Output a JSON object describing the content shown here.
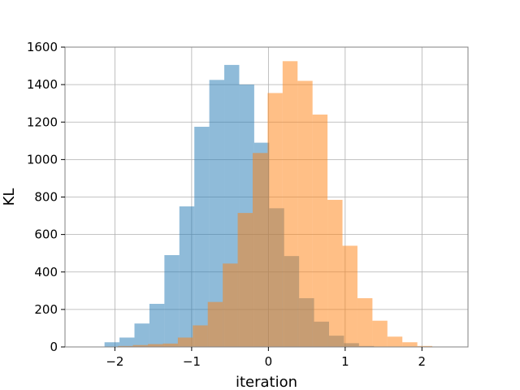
{
  "chart_data": {
    "type": "bar",
    "title": "",
    "xlabel": "iteration",
    "ylabel": "KL",
    "xlim": [
      -2.65,
      2.6
    ],
    "ylim": [
      0,
      1600
    ],
    "xticks": [
      -2,
      -1,
      0,
      1,
      2
    ],
    "xtick_labels": [
      "−2",
      "−1",
      "0",
      "1",
      "2"
    ],
    "yticks": [
      0,
      200,
      400,
      600,
      800,
      1000,
      1200,
      1400,
      1600
    ],
    "ytick_labels": [
      "0",
      "200",
      "400",
      "600",
      "800",
      "1000",
      "1200",
      "1400",
      "1600"
    ],
    "grid": true,
    "legend": "none",
    "bin_width": 0.195,
    "series": [
      {
        "color": "#1f77b4",
        "opacity": 0.5,
        "bins": [
          {
            "x0": -2.33,
            "value": 2
          },
          {
            "x0": -2.135,
            "value": 25
          },
          {
            "x0": -1.94,
            "value": 50
          },
          {
            "x0": -1.745,
            "value": 125
          },
          {
            "x0": -1.55,
            "value": 230
          },
          {
            "x0": -1.355,
            "value": 490
          },
          {
            "x0": -1.16,
            "value": 750
          },
          {
            "x0": -0.965,
            "value": 1175
          },
          {
            "x0": -0.77,
            "value": 1425
          },
          {
            "x0": -0.575,
            "value": 1505
          },
          {
            "x0": -0.38,
            "value": 1400
          },
          {
            "x0": -0.185,
            "value": 1090
          },
          {
            "x0": 0.01,
            "value": 740
          },
          {
            "x0": 0.205,
            "value": 485
          },
          {
            "x0": 0.4,
            "value": 260
          },
          {
            "x0": 0.595,
            "value": 135
          },
          {
            "x0": 0.79,
            "value": 60
          },
          {
            "x0": 0.985,
            "value": 20
          },
          {
            "x0": 1.18,
            "value": 5
          }
        ]
      },
      {
        "color": "#ff7f0e",
        "opacity": 0.5,
        "bins": [
          {
            "x0": -1.96,
            "value": 5
          },
          {
            "x0": -1.765,
            "value": 10
          },
          {
            "x0": -1.57,
            "value": 15
          },
          {
            "x0": -1.375,
            "value": 18
          },
          {
            "x0": -1.18,
            "value": 50
          },
          {
            "x0": -0.985,
            "value": 115
          },
          {
            "x0": -0.79,
            "value": 240
          },
          {
            "x0": -0.595,
            "value": 445
          },
          {
            "x0": -0.4,
            "value": 715
          },
          {
            "x0": -0.205,
            "value": 1035
          },
          {
            "x0": -0.01,
            "value": 1355
          },
          {
            "x0": 0.185,
            "value": 1525
          },
          {
            "x0": 0.38,
            "value": 1420
          },
          {
            "x0": 0.575,
            "value": 1240
          },
          {
            "x0": 0.77,
            "value": 785
          },
          {
            "x0": 0.965,
            "value": 540
          },
          {
            "x0": 1.16,
            "value": 260
          },
          {
            "x0": 1.355,
            "value": 140
          },
          {
            "x0": 1.55,
            "value": 55
          },
          {
            "x0": 1.745,
            "value": 25
          },
          {
            "x0": 1.94,
            "value": 5
          }
        ]
      }
    ]
  }
}
